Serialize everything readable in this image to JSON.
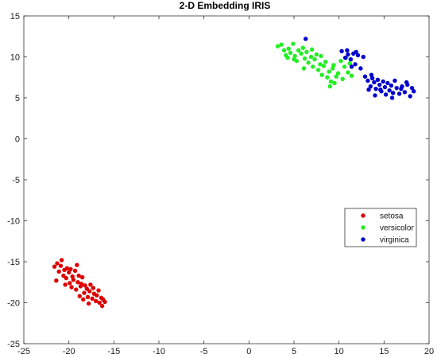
{
  "chart_data": {
    "type": "scatter",
    "title": "2-D Embedding IRIS",
    "xlabel": "",
    "ylabel": "",
    "xlim": [
      -25,
      20
    ],
    "ylim": [
      -25,
      15
    ],
    "xticks": [
      -25,
      -20,
      -15,
      -10,
      -5,
      0,
      5,
      10,
      15,
      20
    ],
    "yticks": [
      -25,
      -20,
      -15,
      -10,
      -5,
      0,
      5,
      10,
      15
    ],
    "grid": false,
    "legend_position": "right",
    "series": [
      {
        "name": "setosa",
        "color": "#dd0000",
        "points": [
          [
            -21.6,
            -15.6
          ],
          [
            -21.4,
            -17.3
          ],
          [
            -21.1,
            -16.2
          ],
          [
            -20.9,
            -15.5
          ],
          [
            -20.8,
            -14.8
          ],
          [
            -20.6,
            -16.7
          ],
          [
            -20.5,
            -16.0
          ],
          [
            -20.3,
            -17.0
          ],
          [
            -20.2,
            -15.8
          ],
          [
            -20.0,
            -16.3
          ],
          [
            -19.9,
            -17.6
          ],
          [
            -19.8,
            -15.9
          ],
          [
            -19.6,
            -16.8
          ],
          [
            -19.5,
            -17.2
          ],
          [
            -19.3,
            -16.1
          ],
          [
            -19.2,
            -18.4
          ],
          [
            -19.0,
            -17.5
          ],
          [
            -18.9,
            -16.7
          ],
          [
            -18.7,
            -18.0
          ],
          [
            -18.6,
            -17.7
          ],
          [
            -18.5,
            -16.9
          ],
          [
            -18.3,
            -18.8
          ],
          [
            -18.2,
            -17.9
          ],
          [
            -18.0,
            -18.3
          ],
          [
            -17.9,
            -19.3
          ],
          [
            -17.7,
            -18.6
          ],
          [
            -17.6,
            -17.8
          ],
          [
            -17.4,
            -19.5
          ],
          [
            -17.3,
            -18.2
          ],
          [
            -17.2,
            -18.9
          ],
          [
            -17.0,
            -19.8
          ],
          [
            -16.9,
            -19.1
          ],
          [
            -16.7,
            -18.5
          ],
          [
            -16.6,
            -20.0
          ],
          [
            -16.4,
            -19.4
          ],
          [
            -16.3,
            -20.4
          ],
          [
            -16.2,
            -19.6
          ],
          [
            -16.0,
            -19.9
          ],
          [
            -21.3,
            -15.2
          ],
          [
            -19.1,
            -15.4
          ],
          [
            -18.8,
            -19.2
          ],
          [
            -20.4,
            -17.8
          ],
          [
            -18.4,
            -19.6
          ],
          [
            -19.7,
            -18.1
          ],
          [
            -17.8,
            -20.1
          ]
        ]
      },
      {
        "name": "versicolor",
        "color": "#22ee22",
        "points": [
          [
            3.2,
            11.3
          ],
          [
            3.6,
            11.5
          ],
          [
            3.9,
            10.8
          ],
          [
            4.1,
            10.2
          ],
          [
            4.4,
            11.0
          ],
          [
            4.6,
            10.5
          ],
          [
            4.9,
            11.6
          ],
          [
            5.1,
            10.1
          ],
          [
            5.3,
            9.5
          ],
          [
            5.5,
            10.8
          ],
          [
            5.8,
            10.4
          ],
          [
            6.0,
            11.1
          ],
          [
            6.2,
            9.8
          ],
          [
            6.4,
            10.6
          ],
          [
            6.6,
            9.3
          ],
          [
            6.9,
            10.0
          ],
          [
            7.1,
            8.8
          ],
          [
            7.3,
            9.7
          ],
          [
            7.5,
            10.3
          ],
          [
            7.7,
            8.4
          ],
          [
            7.9,
            9.1
          ],
          [
            8.1,
            7.8
          ],
          [
            8.3,
            8.9
          ],
          [
            8.5,
            9.4
          ],
          [
            8.7,
            7.5
          ],
          [
            8.9,
            8.2
          ],
          [
            9.1,
            7.0
          ],
          [
            9.3,
            8.6
          ],
          [
            9.5,
            6.8
          ],
          [
            9.7,
            7.6
          ],
          [
            9.9,
            8.0
          ],
          [
            10.2,
            9.5
          ],
          [
            10.4,
            7.3
          ],
          [
            10.6,
            8.8
          ],
          [
            10.8,
            9.9
          ],
          [
            11.0,
            8.1
          ],
          [
            11.2,
            9.2
          ],
          [
            11.4,
            7.7
          ],
          [
            6.1,
            8.6
          ],
          [
            5.0,
            9.7
          ],
          [
            4.3,
            9.9
          ],
          [
            7.0,
            10.9
          ],
          [
            8.0,
            10.1
          ],
          [
            9.4,
            9.0
          ],
          [
            9.0,
            6.4
          ]
        ]
      },
      {
        "name": "virginica",
        "color": "#0000cc",
        "points": [
          [
            6.3,
            12.2
          ],
          [
            10.3,
            10.7
          ],
          [
            10.7,
            9.9
          ],
          [
            11.0,
            10.3
          ],
          [
            11.3,
            9.7
          ],
          [
            11.6,
            10.4
          ],
          [
            11.8,
            9.1
          ],
          [
            12.1,
            10.2
          ],
          [
            12.4,
            8.6
          ],
          [
            12.7,
            10.0
          ],
          [
            13.2,
            7.1
          ],
          [
            13.5,
            6.4
          ],
          [
            13.7,
            7.4
          ],
          [
            13.9,
            6.9
          ],
          [
            14.1,
            6.1
          ],
          [
            14.3,
            7.2
          ],
          [
            14.5,
            6.6
          ],
          [
            14.7,
            5.8
          ],
          [
            14.9,
            7.0
          ],
          [
            15.1,
            6.3
          ],
          [
            15.2,
            5.4
          ],
          [
            15.4,
            6.8
          ],
          [
            15.6,
            5.9
          ],
          [
            15.8,
            6.5
          ],
          [
            16.0,
            5.6
          ],
          [
            16.2,
            7.1
          ],
          [
            16.4,
            6.2
          ],
          [
            16.7,
            5.5
          ],
          [
            17.0,
            6.4
          ],
          [
            17.3,
            5.7
          ],
          [
            17.6,
            6.6
          ],
          [
            17.9,
            5.2
          ],
          [
            18.1,
            6.2
          ],
          [
            18.3,
            5.8
          ],
          [
            14.0,
            5.3
          ],
          [
            12.9,
            7.6
          ],
          [
            11.4,
            8.8
          ],
          [
            13.3,
            6.0
          ],
          [
            15.9,
            5.0
          ],
          [
            16.9,
            6.1
          ],
          [
            11.9,
            10.6
          ],
          [
            10.9,
            10.8
          ],
          [
            13.6,
            7.8
          ],
          [
            14.6,
            6.0
          ],
          [
            17.5,
            6.9
          ]
        ]
      }
    ]
  }
}
